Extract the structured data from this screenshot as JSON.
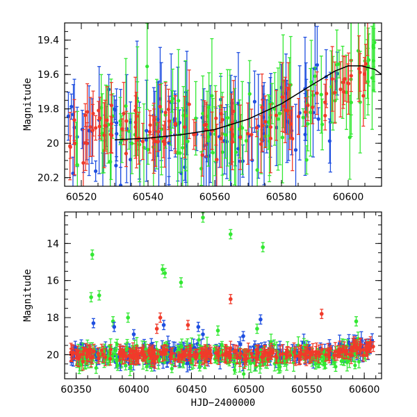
{
  "chart_data": [
    {
      "type": "scatter",
      "title": "",
      "xlabel": "",
      "ylabel": "Magnitude",
      "xlim": [
        60515,
        60610
      ],
      "ylim": [
        20.25,
        19.3
      ],
      "y_inverted": true,
      "x_ticks": [
        "60520",
        "60540",
        "60560",
        "60580",
        "60600"
      ],
      "x_tick_values": [
        60520,
        60540,
        60560,
        60580,
        60600
      ],
      "y_ticks": [
        "19.4",
        "19.6",
        "19.8",
        "20",
        "20.2"
      ],
      "y_tick_values": [
        19.4,
        19.6,
        19.8,
        20.0,
        20.2
      ],
      "series": [
        {
          "color": "#1f4fe0",
          "marker": "circle",
          "x_range": [
            60516,
            60598
          ],
          "magnitude_level": 19.95,
          "scatter": 0.22
        },
        {
          "color": "#33e833",
          "marker": "circle",
          "x_range": [
            60518,
            60608
          ],
          "magnitude_level": 19.9,
          "scatter": 0.22
        },
        {
          "color": "#f03a2a",
          "marker": "circle",
          "x_range": [
            60516,
            60606
          ],
          "magnitude_level": 19.92,
          "scatter": 0.12
        }
      ],
      "trend": {
        "color": "#000000",
        "x": [
          60530,
          60540,
          60550,
          60560,
          60570,
          60580,
          60590,
          60596,
          60600,
          60604,
          60608,
          60610
        ],
        "y": [
          19.98,
          19.97,
          19.95,
          19.92,
          19.86,
          19.77,
          19.65,
          19.58,
          19.55,
          19.55,
          19.57,
          19.6
        ]
      }
    },
    {
      "type": "scatter",
      "title": "",
      "xlabel": "HJD−2400000",
      "ylabel": "Magnitude",
      "xlim": [
        60340,
        60615
      ],
      "ylim": [
        21.3,
        12.3
      ],
      "y_inverted": true,
      "x_ticks": [
        "60350",
        "60400",
        "60450",
        "60500",
        "60550",
        "60600"
      ],
      "x_tick_values": [
        60350,
        60400,
        60450,
        60500,
        60550,
        60600
      ],
      "y_ticks": [
        "14",
        "16",
        "18",
        "20"
      ],
      "y_tick_values": [
        14,
        16,
        18,
        20
      ],
      "series": [
        {
          "color": "#1f4fe0",
          "marker": "square",
          "x_range": [
            60345,
            60608
          ],
          "magnitude_level": 20.0,
          "scatter": 0.4
        },
        {
          "color": "#33e833",
          "marker": "circle",
          "x_range": [
            60348,
            60605
          ],
          "magnitude_level": 20.1,
          "scatter": 0.5
        },
        {
          "color": "#f03a2a",
          "marker": "circle",
          "x_range": [
            60345,
            60608
          ],
          "magnitude_level": 20.0,
          "scatter": 0.25
        }
      ],
      "outliers": [
        {
          "color": "#33e833",
          "x": 60460,
          "y": 12.6
        },
        {
          "color": "#33e833",
          "x": 60484,
          "y": 13.5
        },
        {
          "color": "#33e833",
          "x": 60512,
          "y": 14.2
        },
        {
          "color": "#33e833",
          "x": 60364,
          "y": 14.6
        },
        {
          "color": "#33e833",
          "x": 60425,
          "y": 15.4
        },
        {
          "color": "#33e833",
          "x": 60427,
          "y": 15.6
        },
        {
          "color": "#33e833",
          "x": 60441,
          "y": 16.1
        },
        {
          "color": "#33e833",
          "x": 60363,
          "y": 16.9
        },
        {
          "color": "#33e833",
          "x": 60370,
          "y": 16.8
        },
        {
          "color": "#33e833",
          "x": 60593,
          "y": 18.2
        },
        {
          "color": "#33e833",
          "x": 60382,
          "y": 18.2
        },
        {
          "color": "#33e833",
          "x": 60507,
          "y": 18.6
        },
        {
          "color": "#33e833",
          "x": 60473,
          "y": 18.7
        },
        {
          "color": "#33e833",
          "x": 60395,
          "y": 18.0
        },
        {
          "color": "#f03a2a",
          "x": 60484,
          "y": 17.0
        },
        {
          "color": "#f03a2a",
          "x": 60563,
          "y": 17.8
        },
        {
          "color": "#f03a2a",
          "x": 60423,
          "y": 18.0
        },
        {
          "color": "#f03a2a",
          "x": 60420,
          "y": 18.6
        },
        {
          "color": "#f03a2a",
          "x": 60447,
          "y": 18.4
        },
        {
          "color": "#1f4fe0",
          "x": 60365,
          "y": 18.3
        },
        {
          "color": "#1f4fe0",
          "x": 60383,
          "y": 18.5
        },
        {
          "color": "#1f4fe0",
          "x": 60400,
          "y": 18.9
        },
        {
          "color": "#1f4fe0",
          "x": 60426,
          "y": 18.4
        },
        {
          "color": "#1f4fe0",
          "x": 60456,
          "y": 18.5
        },
        {
          "color": "#1f4fe0",
          "x": 60510,
          "y": 18.1
        },
        {
          "color": "#1f4fe0",
          "x": 60495,
          "y": 19.0
        },
        {
          "color": "#1f4fe0",
          "x": 60460,
          "y": 18.9
        }
      ]
    }
  ]
}
